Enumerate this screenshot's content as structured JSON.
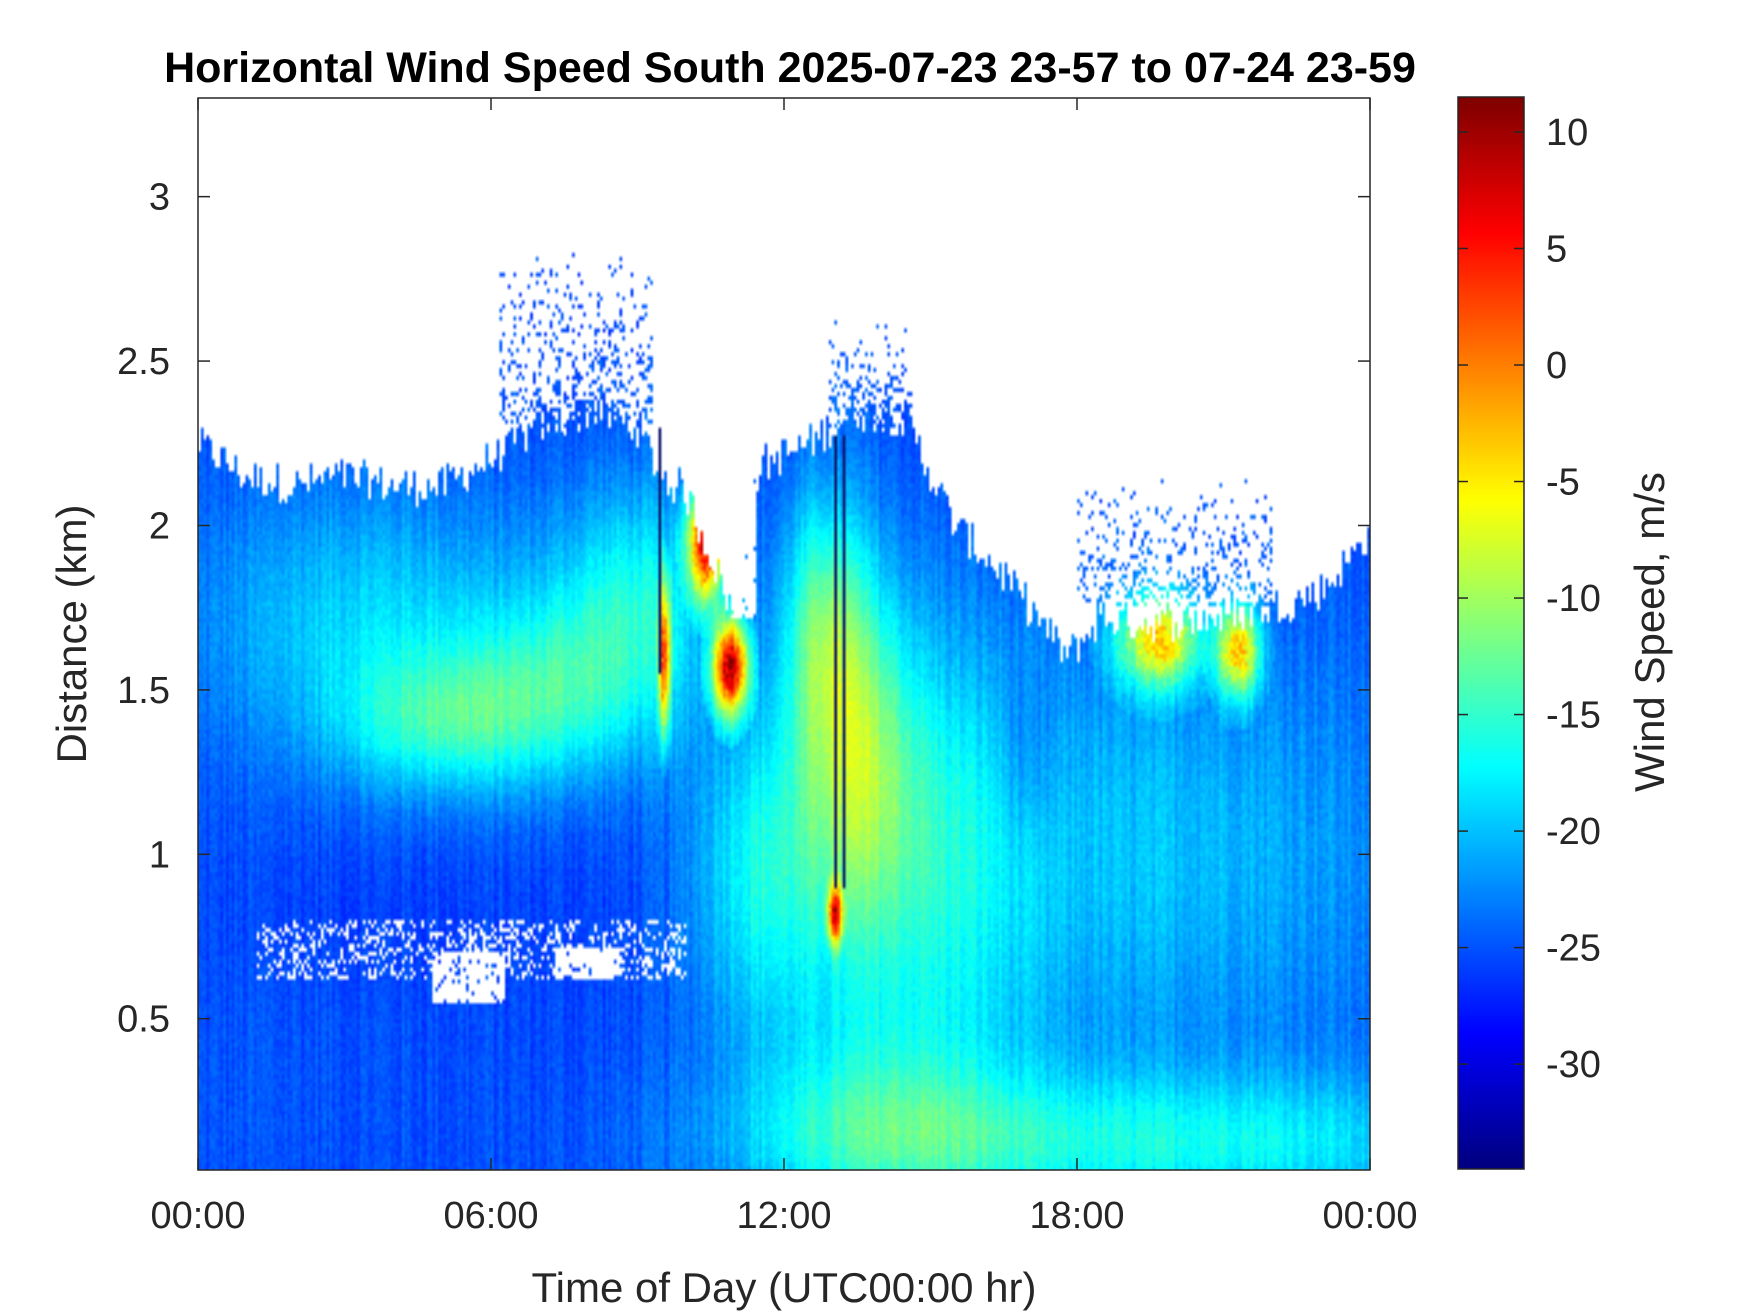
{
  "chart_data": {
    "type": "heatmap",
    "title": "Horizontal Wind Speed South 2025-07-23 23-57 to 07-24 23-59",
    "xlabel": "Time of Day (UTC00:00 hr)",
    "ylabel": "Distance (km)",
    "x_ticks": [
      "00:00",
      "06:00",
      "12:00",
      "18:00",
      "00:00"
    ],
    "x_range_hours": [
      0,
      24
    ],
    "y_ticks": [
      {
        "label": "0.5",
        "value": 0.5
      },
      {
        "label": "1",
        "value": 1
      },
      {
        "label": "1.5",
        "value": 1.5
      },
      {
        "label": "2",
        "value": 2
      },
      {
        "label": "2.5",
        "value": 2.5
      },
      {
        "label": "3",
        "value": 3
      }
    ],
    "ylim": [
      0.04,
      3.3
    ],
    "colorbar": {
      "label": "Wind Speed, m/s",
      "colormap": "jet",
      "range": [
        -34.5,
        11.5
      ],
      "ticks": [
        {
          "label": "10",
          "value": 10
        },
        {
          "label": "5",
          "value": 5
        },
        {
          "label": "0",
          "value": 0
        },
        {
          "label": "-5",
          "value": -5
        },
        {
          "label": "-10",
          "value": -10
        },
        {
          "label": "-15",
          "value": -15
        },
        {
          "label": "-20",
          "value": -20
        },
        {
          "label": "-25",
          "value": -25
        },
        {
          "label": "-30",
          "value": -30
        }
      ]
    },
    "data_top_km": [
      [
        0,
        2.25
      ],
      [
        1,
        2.15
      ],
      [
        2,
        2.12
      ],
      [
        3,
        2.15
      ],
      [
        4,
        2.12
      ],
      [
        5,
        2.12
      ],
      [
        6,
        2.2
      ],
      [
        7,
        2.3
      ],
      [
        8,
        2.35
      ],
      [
        9,
        2.3
      ],
      [
        9.5,
        2.15
      ],
      [
        10,
        2.1
      ],
      [
        11,
        1.72
      ],
      [
        11.5,
        2.18
      ],
      [
        12.5,
        2.25
      ],
      [
        13.5,
        2.35
      ],
      [
        14.5,
        2.32
      ],
      [
        15.5,
        2.0
      ],
      [
        16.5,
        1.85
      ],
      [
        17.3,
        1.7
      ],
      [
        17.8,
        1.6
      ],
      [
        18.5,
        1.72
      ],
      [
        19.5,
        1.7
      ],
      [
        21,
        1.72
      ],
      [
        22,
        1.75
      ],
      [
        23,
        1.8
      ],
      [
        23.9,
        1.95
      ],
      [
        24,
        2.05
      ]
    ],
    "regions": [
      {
        "t": 3.5,
        "h": 1.7,
        "st": 2.5,
        "sh": 0.3,
        "v": -19
      },
      {
        "t": 5,
        "h": 1.4,
        "st": 1.5,
        "sh": 0.15,
        "v": -18
      },
      {
        "t": 7.5,
        "h": 1.5,
        "st": 1.5,
        "sh": 0.2,
        "v": -18
      },
      {
        "t": 9,
        "h": 1.8,
        "st": 1.2,
        "sh": 0.25,
        "v": -18
      },
      {
        "t": 11.5,
        "h": 0.95,
        "st": 1.0,
        "sh": 0.35,
        "v": -17
      },
      {
        "t": 13.5,
        "h": 1.3,
        "st": 0.8,
        "sh": 0.4,
        "v": -15
      },
      {
        "t": 12.8,
        "h": 1.7,
        "st": 0.6,
        "sh": 0.3,
        "v": -16
      },
      {
        "t": 15,
        "h": 1.0,
        "st": 1.5,
        "sh": 0.5,
        "v": -18
      },
      {
        "t": 20,
        "h": 1.0,
        "st": 3.5,
        "sh": 0.5,
        "v": -20
      },
      {
        "t": 17,
        "h": 1.3,
        "st": 0.4,
        "sh": 0.2,
        "v": -28
      },
      {
        "t": 4,
        "h": 0.8,
        "st": 3.0,
        "sh": 0.15,
        "v": -26
      },
      {
        "t": 2,
        "h": 0.3,
        "st": 2.5,
        "sh": 0.3,
        "v": -25
      },
      {
        "t": 13.8,
        "h": 0.22,
        "st": 2.0,
        "sh": 0.25,
        "v": -20
      },
      {
        "t": 15.5,
        "h": 0.12,
        "st": 3.5,
        "sh": 0.15,
        "v": -19
      },
      {
        "t": 22,
        "h": 0.12,
        "st": 3.0,
        "sh": 0.15,
        "v": -19
      }
    ],
    "hotspots": [
      {
        "t": 10.4,
        "h": 1.95,
        "st": 0.25,
        "sh": 0.12,
        "v": 8
      },
      {
        "t": 10.9,
        "h": 1.57,
        "st": 0.25,
        "sh": 0.1,
        "v": 10
      },
      {
        "t": 9.55,
        "h": 1.6,
        "st": 0.08,
        "sh": 0.15,
        "v": 4
      },
      {
        "t": 13.05,
        "h": 0.82,
        "st": 0.1,
        "sh": 0.06,
        "v": 9
      },
      {
        "t": 19.7,
        "h": 1.65,
        "st": 0.6,
        "sh": 0.1,
        "v": -4
      },
      {
        "t": 21.3,
        "h": 1.62,
        "st": 0.3,
        "sh": 0.1,
        "v": -2
      }
    ],
    "gaps": [
      {
        "t0": 1.2,
        "t1": 10,
        "h0": 0.62,
        "h1": 0.8,
        "kind": "band"
      },
      {
        "t0": 4.8,
        "t1": 6.3,
        "h0": 0.55,
        "h1": 0.7,
        "kind": "solid"
      },
      {
        "t0": 7.3,
        "t1": 8.6,
        "h0": 0.62,
        "h1": 0.72,
        "kind": "solid"
      },
      {
        "t0": 10.9,
        "t1": 11.4,
        "h0": 1.72,
        "h1": 2.3,
        "kind": "solid"
      }
    ],
    "plumes": [
      {
        "t0": 6.2,
        "t1": 9.3,
        "h0": 2.3,
        "h1": 2.85
      },
      {
        "t0": 12.9,
        "t1": 14.6,
        "h0": 2.3,
        "h1": 2.65
      },
      {
        "t0": 18.0,
        "t1": 22.0,
        "h0": 1.75,
        "h1": 2.15
      }
    ],
    "lines": [
      {
        "t": 9.45,
        "h0": 1.55,
        "h1": 2.3
      },
      {
        "t": 13.05,
        "h0": 0.9,
        "h1": 2.27
      },
      {
        "t": 13.2,
        "h0": 0.9,
        "h1": 2.27
      }
    ]
  }
}
